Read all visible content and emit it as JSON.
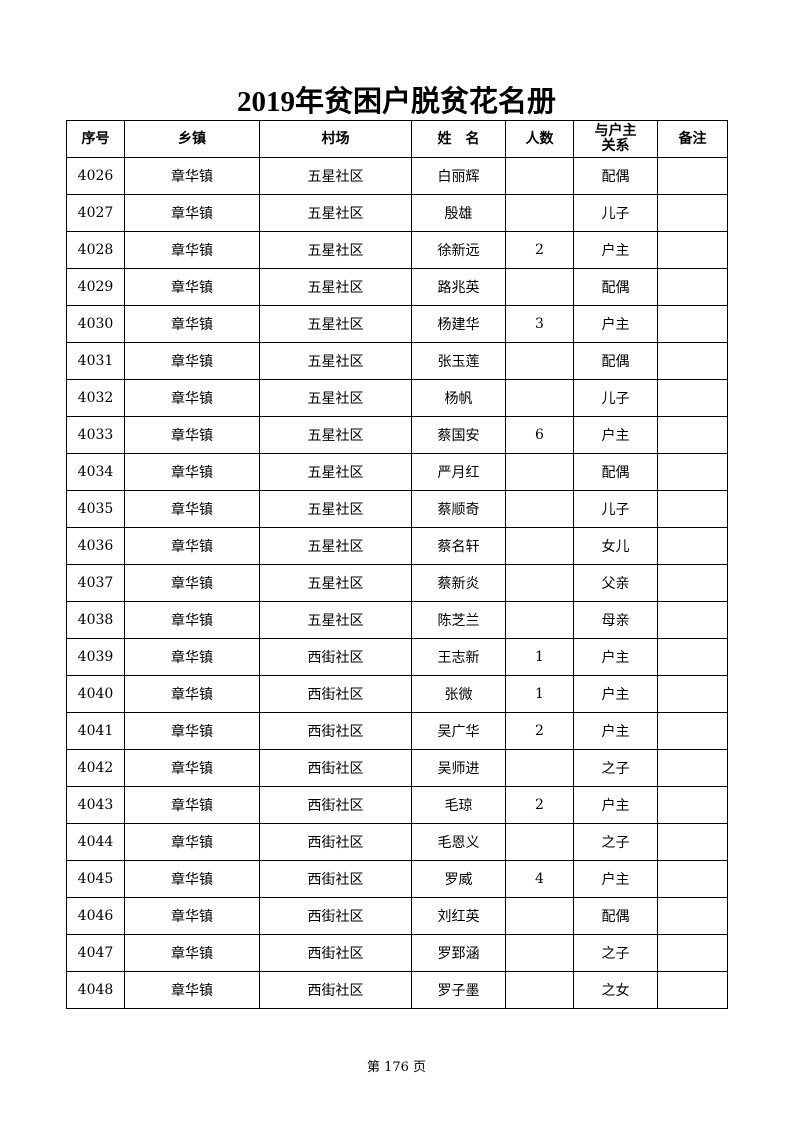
{
  "title": "2019年贫困户脱贫花名册",
  "headers": [
    "序号",
    "乡镇",
    "村场",
    "姓　名",
    "人数",
    "与户主\n关系",
    "备注"
  ],
  "rows": [
    [
      "4026",
      "章华镇",
      "五星社区",
      "白丽辉",
      "",
      "配偶",
      ""
    ],
    [
      "4027",
      "章华镇",
      "五星社区",
      "殷雄",
      "",
      "儿子",
      ""
    ],
    [
      "4028",
      "章华镇",
      "五星社区",
      "徐新远",
      "2",
      "户主",
      ""
    ],
    [
      "4029",
      "章华镇",
      "五星社区",
      "路兆英",
      "",
      "配偶",
      ""
    ],
    [
      "4030",
      "章华镇",
      "五星社区",
      "杨建华",
      "3",
      "户主",
      ""
    ],
    [
      "4031",
      "章华镇",
      "五星社区",
      "张玉莲",
      "",
      "配偶",
      ""
    ],
    [
      "4032",
      "章华镇",
      "五星社区",
      "杨帆",
      "",
      "儿子",
      ""
    ],
    [
      "4033",
      "章华镇",
      "五星社区",
      "蔡国安",
      "6",
      "户主",
      ""
    ],
    [
      "4034",
      "章华镇",
      "五星社区",
      "严月红",
      "",
      "配偶",
      ""
    ],
    [
      "4035",
      "章华镇",
      "五星社区",
      "蔡顺奇",
      "",
      "儿子",
      ""
    ],
    [
      "4036",
      "章华镇",
      "五星社区",
      "蔡名轩",
      "",
      "女儿",
      ""
    ],
    [
      "4037",
      "章华镇",
      "五星社区",
      "蔡新炎",
      "",
      "父亲",
      ""
    ],
    [
      "4038",
      "章华镇",
      "五星社区",
      "陈芝兰",
      "",
      "母亲",
      ""
    ],
    [
      "4039",
      "章华镇",
      "西街社区",
      "王志新",
      "1",
      "户主",
      ""
    ],
    [
      "4040",
      "章华镇",
      "西街社区",
      "张微",
      "1",
      "户主",
      ""
    ],
    [
      "4041",
      "章华镇",
      "西街社区",
      "吴广华",
      "2",
      "户主",
      ""
    ],
    [
      "4042",
      "章华镇",
      "西街社区",
      "吴师进",
      "",
      "之子",
      ""
    ],
    [
      "4043",
      "章华镇",
      "西街社区",
      "毛琼",
      "2",
      "户主",
      ""
    ],
    [
      "4044",
      "章华镇",
      "西街社区",
      "毛恩义",
      "",
      "之子",
      ""
    ],
    [
      "4045",
      "章华镇",
      "西街社区",
      "罗威",
      "4",
      "户主",
      ""
    ],
    [
      "4046",
      "章华镇",
      "西街社区",
      "刘红英",
      "",
      "配偶",
      ""
    ],
    [
      "4047",
      "章华镇",
      "西街社区",
      "罗郅涵",
      "",
      "之子",
      ""
    ],
    [
      "4048",
      "章华镇",
      "西街社区",
      "罗子墨",
      "",
      "之女",
      ""
    ]
  ],
  "footer": "第 176 页"
}
